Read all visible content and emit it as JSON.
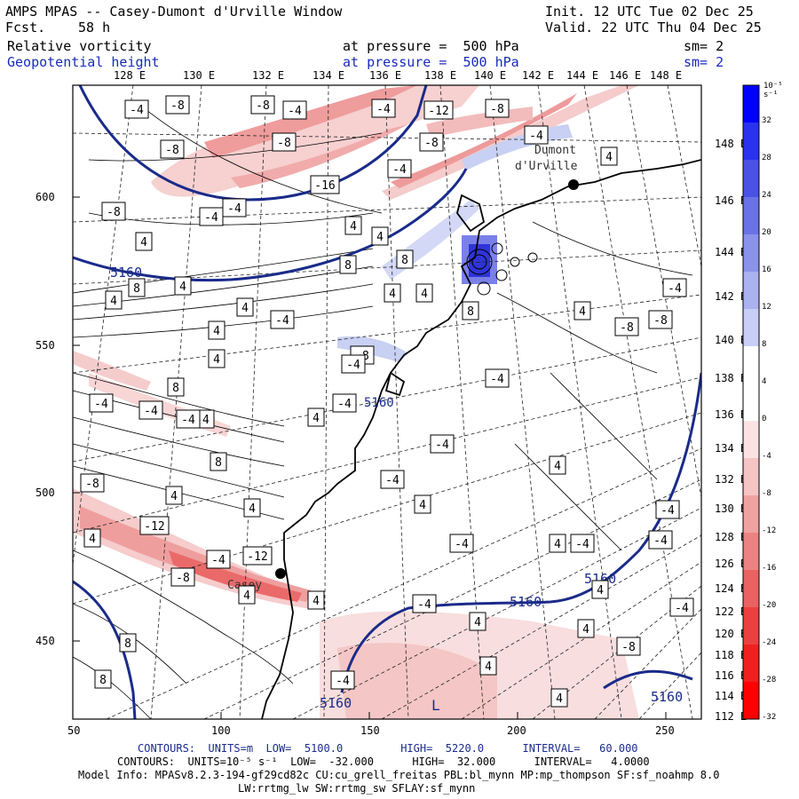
{
  "header": {
    "model": "AMPS MPAS -- Casey-Dumont d'Urville Window",
    "fcst_label": "Fcst.",
    "fcst_value": "58 h",
    "init": "Init. 12 UTC Tue 02 Dec 25",
    "valid": "Valid. 22 UTC Thu 04 Dec 25",
    "field1_name": "Relative vorticity",
    "field1_level": "at pressure =  500 hPa",
    "field1_sm": "sm= 2",
    "field2_name": "Geopotential height",
    "field2_level": "at pressure =  500 hPa",
    "field2_sm": "sm= 2"
  },
  "axes": {
    "top_lon": [
      "128 E",
      "130 E",
      "132 E",
      "134 E",
      "136 E",
      "138 E",
      "140 E",
      "142 E",
      "144 E",
      "146 E",
      "148 E"
    ],
    "left_y": [
      "600",
      "550",
      "500",
      "450"
    ],
    "bottom_x": [
      "50",
      "100",
      "150",
      "200",
      "250"
    ],
    "right_lat": [
      "148 E",
      "146 E",
      "144 E",
      "142 E",
      "140 E",
      "138 E",
      "136 E",
      "134 E",
      "132 E",
      "130 E",
      "128 E",
      "126 E",
      "124 E",
      "122 E",
      "120 E",
      "118 E",
      "116 E",
      "114 E",
      "112 E"
    ]
  },
  "colorbar": {
    "unit": "10⁻⁵ s⁻¹",
    "labels": [
      "32",
      "28",
      "24",
      "20",
      "16",
      "12",
      "8",
      "4",
      "0",
      "-4",
      "-8",
      "-12",
      "-16",
      "-20",
      "-24",
      "-28",
      "-32"
    ],
    "colors": [
      "#0000ff",
      "#2a32f0",
      "#4a52e6",
      "#6a72e6",
      "#8a92ea",
      "#aab2f0",
      "#c8cef5",
      "#ffffff",
      "#ffffff",
      "#fbe3e3",
      "#f5c4c4",
      "#f0a2a2",
      "#ec8282",
      "#ea6262",
      "#ec4040",
      "#f02020",
      "#ff0000"
    ]
  },
  "map": {
    "stations": [
      "Dumont",
      "d'Urville",
      "Casey"
    ],
    "height_labels": [
      "5160",
      "5160",
      "5160",
      "5160",
      "5160",
      "5160"
    ],
    "low_label": "L",
    "vort_labels": [
      "-4",
      "-8",
      "-8",
      "-4",
      "-4",
      "-12",
      "-8",
      "-8",
      "-8",
      "-8",
      "-4",
      "-16",
      "-4",
      "-8",
      "-4",
      "4",
      "4",
      "8",
      "4",
      "8",
      "8",
      "4",
      "4",
      "4",
      "-4",
      "4",
      "4",
      "8",
      "8",
      "-4",
      "-8",
      "-4",
      "-4",
      "-4",
      "-4",
      "4",
      "4",
      "8",
      "4",
      "-4",
      "-4",
      "-4",
      "-8",
      "-8",
      "-12",
      "-8",
      "-4",
      "-12",
      "4",
      "4",
      "4",
      "4",
      "4",
      "4",
      "4",
      "-4",
      "-4",
      "-4",
      "4",
      "-4",
      "-4",
      "4",
      "4",
      "-8",
      "4",
      "8",
      "8",
      "-4",
      "4",
      "4",
      "-4",
      "-4",
      "-4",
      "-4",
      "4",
      "-8",
      "4"
    ]
  },
  "footer": {
    "line1": "CONTOURS:  UNITS=m  LOW=  5100.0         HIGH=  5220.0      INTERVAL=   60.000",
    "line2": "CONTOURS:  UNITS=10⁻⁵ s⁻¹  LOW=  -32.000      HIGH=  32.000      INTERVAL=   4.0000",
    "line3": "Model Info: MPASv8.2.3-194-gf29cd82c CU:cu_grell_freitas PBL:bl_mynn MP:mp_thompson SF:sf_noahmp 8.0",
    "line4": "LW:rrtmg_lw SW:rrtmg_sw SFLAY:sf_mynn"
  }
}
